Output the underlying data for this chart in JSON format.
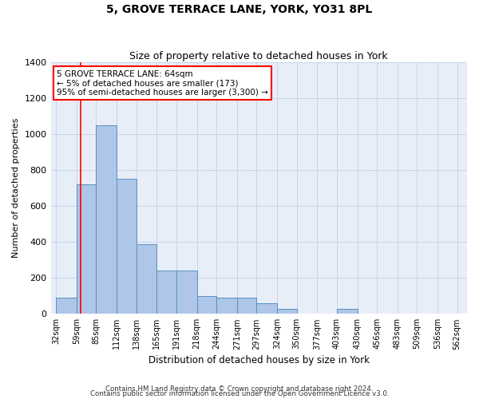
{
  "title": "5, GROVE TERRACE LANE, YORK, YO31 8PL",
  "subtitle": "Size of property relative to detached houses in York",
  "xlabel": "Distribution of detached houses by size in York",
  "ylabel": "Number of detached properties",
  "footnote1": "Contains HM Land Registry data © Crown copyright and database right 2024.",
  "footnote2": "Contains public sector information licensed under the Open Government Licence v3.0.",
  "annotation_line1": "5 GROVE TERRACE LANE: 64sqm",
  "annotation_line2": "← 5% of detached houses are smaller (173)",
  "annotation_line3": "95% of semi-detached houses are larger (3,300) →",
  "bar_left_edges": [
    32,
    59,
    85,
    112,
    138,
    165,
    191,
    218,
    244,
    271,
    297,
    324,
    350,
    377,
    403,
    430,
    456,
    483,
    509,
    536
  ],
  "bar_widths": [
    27,
    26,
    27,
    26,
    27,
    26,
    27,
    26,
    27,
    26,
    27,
    26,
    27,
    26,
    27,
    26,
    27,
    26,
    27,
    26
  ],
  "bar_heights": [
    90,
    720,
    1050,
    750,
    390,
    240,
    240,
    100,
    90,
    90,
    60,
    30,
    0,
    0,
    30,
    0,
    0,
    0,
    0,
    0
  ],
  "bar_color": "#aec6e8",
  "bar_edge_color": "#5a8fc0",
  "x_tick_labels": [
    "32sqm",
    "59sqm",
    "85sqm",
    "112sqm",
    "138sqm",
    "165sqm",
    "191sqm",
    "218sqm",
    "244sqm",
    "271sqm",
    "297sqm",
    "324sqm",
    "350sqm",
    "377sqm",
    "403sqm",
    "430sqm",
    "456sqm",
    "483sqm",
    "509sqm",
    "536sqm",
    "562sqm"
  ],
  "x_tick_positions": [
    32,
    59,
    85,
    112,
    138,
    165,
    191,
    218,
    244,
    271,
    297,
    324,
    350,
    377,
    403,
    430,
    456,
    483,
    509,
    536,
    562
  ],
  "ylim": [
    0,
    1400
  ],
  "xlim": [
    25,
    575
  ],
  "property_x": 64,
  "grid_color": "#c8d4e8",
  "background_color": "#e8eef8",
  "yticks": [
    0,
    200,
    400,
    600,
    800,
    1000,
    1200,
    1400
  ]
}
